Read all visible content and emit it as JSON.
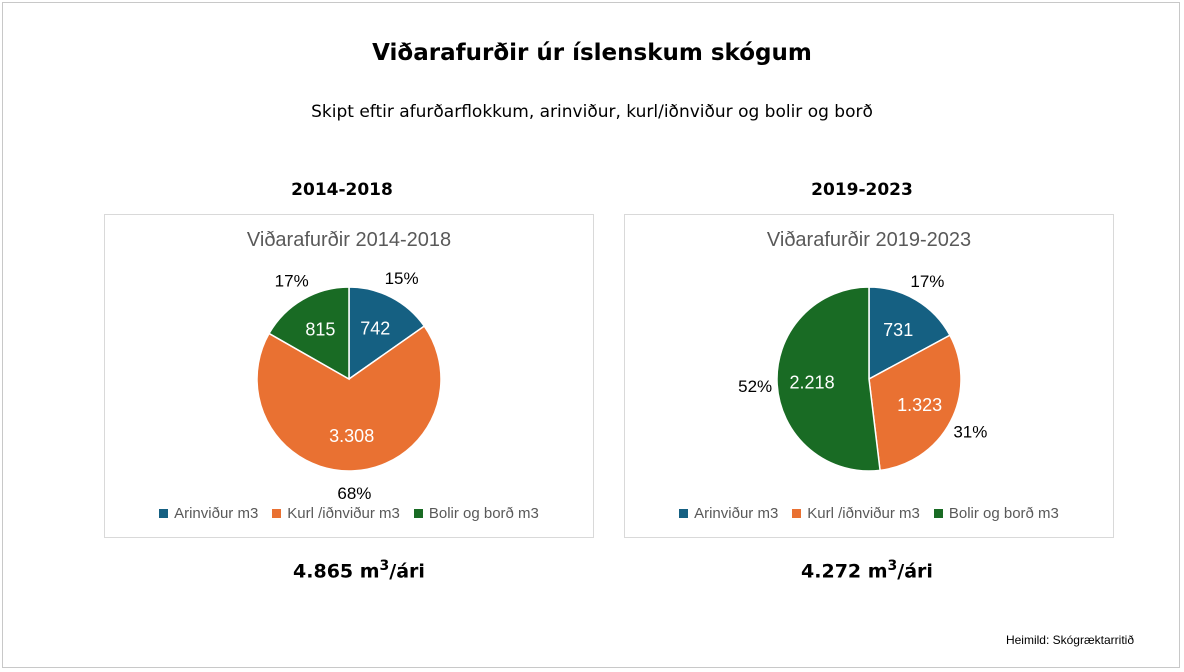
{
  "title": "Viðarafurðir úr íslenskum skógum",
  "subtitle": "Skipt eftir afurðarflokkum, arinviður, kurl/iðnviður og bolir og borð",
  "source": "Heimild: Skógræktarritið",
  "panels": [
    {
      "period": "2014-2018",
      "total_value": "4.865 m",
      "total_sup": "3",
      "total_unit": "/ári"
    },
    {
      "period": "2019-2023",
      "total_value": "4.272 m",
      "total_sup": "3",
      "total_unit": "/ári"
    }
  ],
  "chart_data": [
    {
      "type": "pie",
      "title": "Viðarafurðir 2014-2018",
      "categories": [
        "Arinviður m3",
        "Kurl /iðnviður m3",
        "Bolir og borð m3"
      ],
      "values": [
        742,
        3308,
        815
      ],
      "value_labels": [
        "742",
        "3.308",
        "815"
      ],
      "percent_labels": [
        "15%",
        "68%",
        "17%"
      ],
      "colors": [
        "#156082",
        "#E97132",
        "#196B24"
      ],
      "legend": "bottom"
    },
    {
      "type": "pie",
      "title": "Viðarafurðir 2019-2023",
      "categories": [
        "Arinviður m3",
        "Kurl /iðnviður m3",
        "Bolir og borð m3"
      ],
      "values": [
        731,
        1323,
        2218
      ],
      "value_labels": [
        "731",
        "1.323",
        "2.218"
      ],
      "percent_labels": [
        "17%",
        "31%",
        "52%"
      ],
      "colors": [
        "#156082",
        "#E97132",
        "#196B24"
      ],
      "legend": "bottom"
    }
  ]
}
